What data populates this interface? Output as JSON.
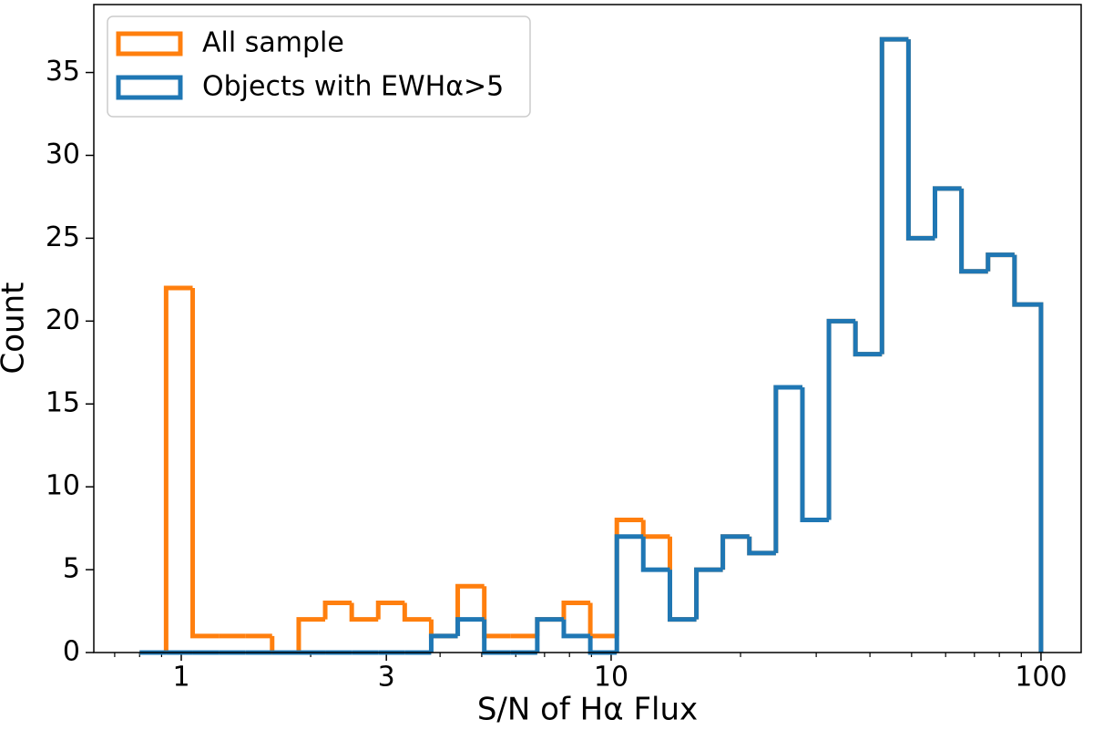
{
  "chart_data": {
    "type": "step_histogram",
    "xlabel": "S/N of Hα Flux",
    "ylabel": "Count",
    "xscale": "log",
    "xlim": [
      0.626,
      124
    ],
    "ylim": [
      0,
      39.1
    ],
    "xticks": [
      1,
      3,
      10,
      100
    ],
    "xminorticks": [
      0.7,
      0.8,
      0.9,
      2,
      4,
      5,
      6,
      7,
      8,
      9,
      20,
      30,
      40,
      50,
      60,
      70,
      80,
      90
    ],
    "yticks": [
      0,
      5,
      10,
      15,
      20,
      25,
      30,
      35
    ],
    "legend": "upper left",
    "bins": [
      0.8,
      0.922,
      1.063,
      1.225,
      1.412,
      1.627,
      1.876,
      2.162,
      2.492,
      2.872,
      3.31,
      3.815,
      4.397,
      5.069,
      5.841,
      6.733,
      7.761,
      8.945,
      10.31,
      11.88,
      13.7,
      15.79,
      18.19,
      20.97,
      24.17,
      27.86,
      32.11,
      37.01,
      42.66,
      49.17,
      56.67,
      65.32,
      75.29,
      86.78,
      100
    ],
    "series": [
      {
        "name": "All sample",
        "color": "#ff7f0e",
        "values": [
          0,
          22,
          1,
          1,
          1,
          0,
          2,
          3,
          2,
          3,
          2,
          1,
          4,
          1,
          1,
          2,
          3,
          1,
          8,
          7,
          2,
          5,
          7,
          6,
          16,
          8,
          20,
          18,
          37,
          25,
          28,
          23,
          24,
          21
        ]
      },
      {
        "name": "Objects with EWHα>5",
        "color": "#1f77b4",
        "values": [
          0,
          0,
          0,
          0,
          0,
          0,
          0,
          0,
          0,
          0,
          0,
          1,
          2,
          0,
          0,
          2,
          1,
          0,
          7,
          5,
          2,
          5,
          7,
          6,
          16,
          8,
          20,
          18,
          37,
          25,
          28,
          23,
          24,
          21
        ]
      }
    ]
  }
}
